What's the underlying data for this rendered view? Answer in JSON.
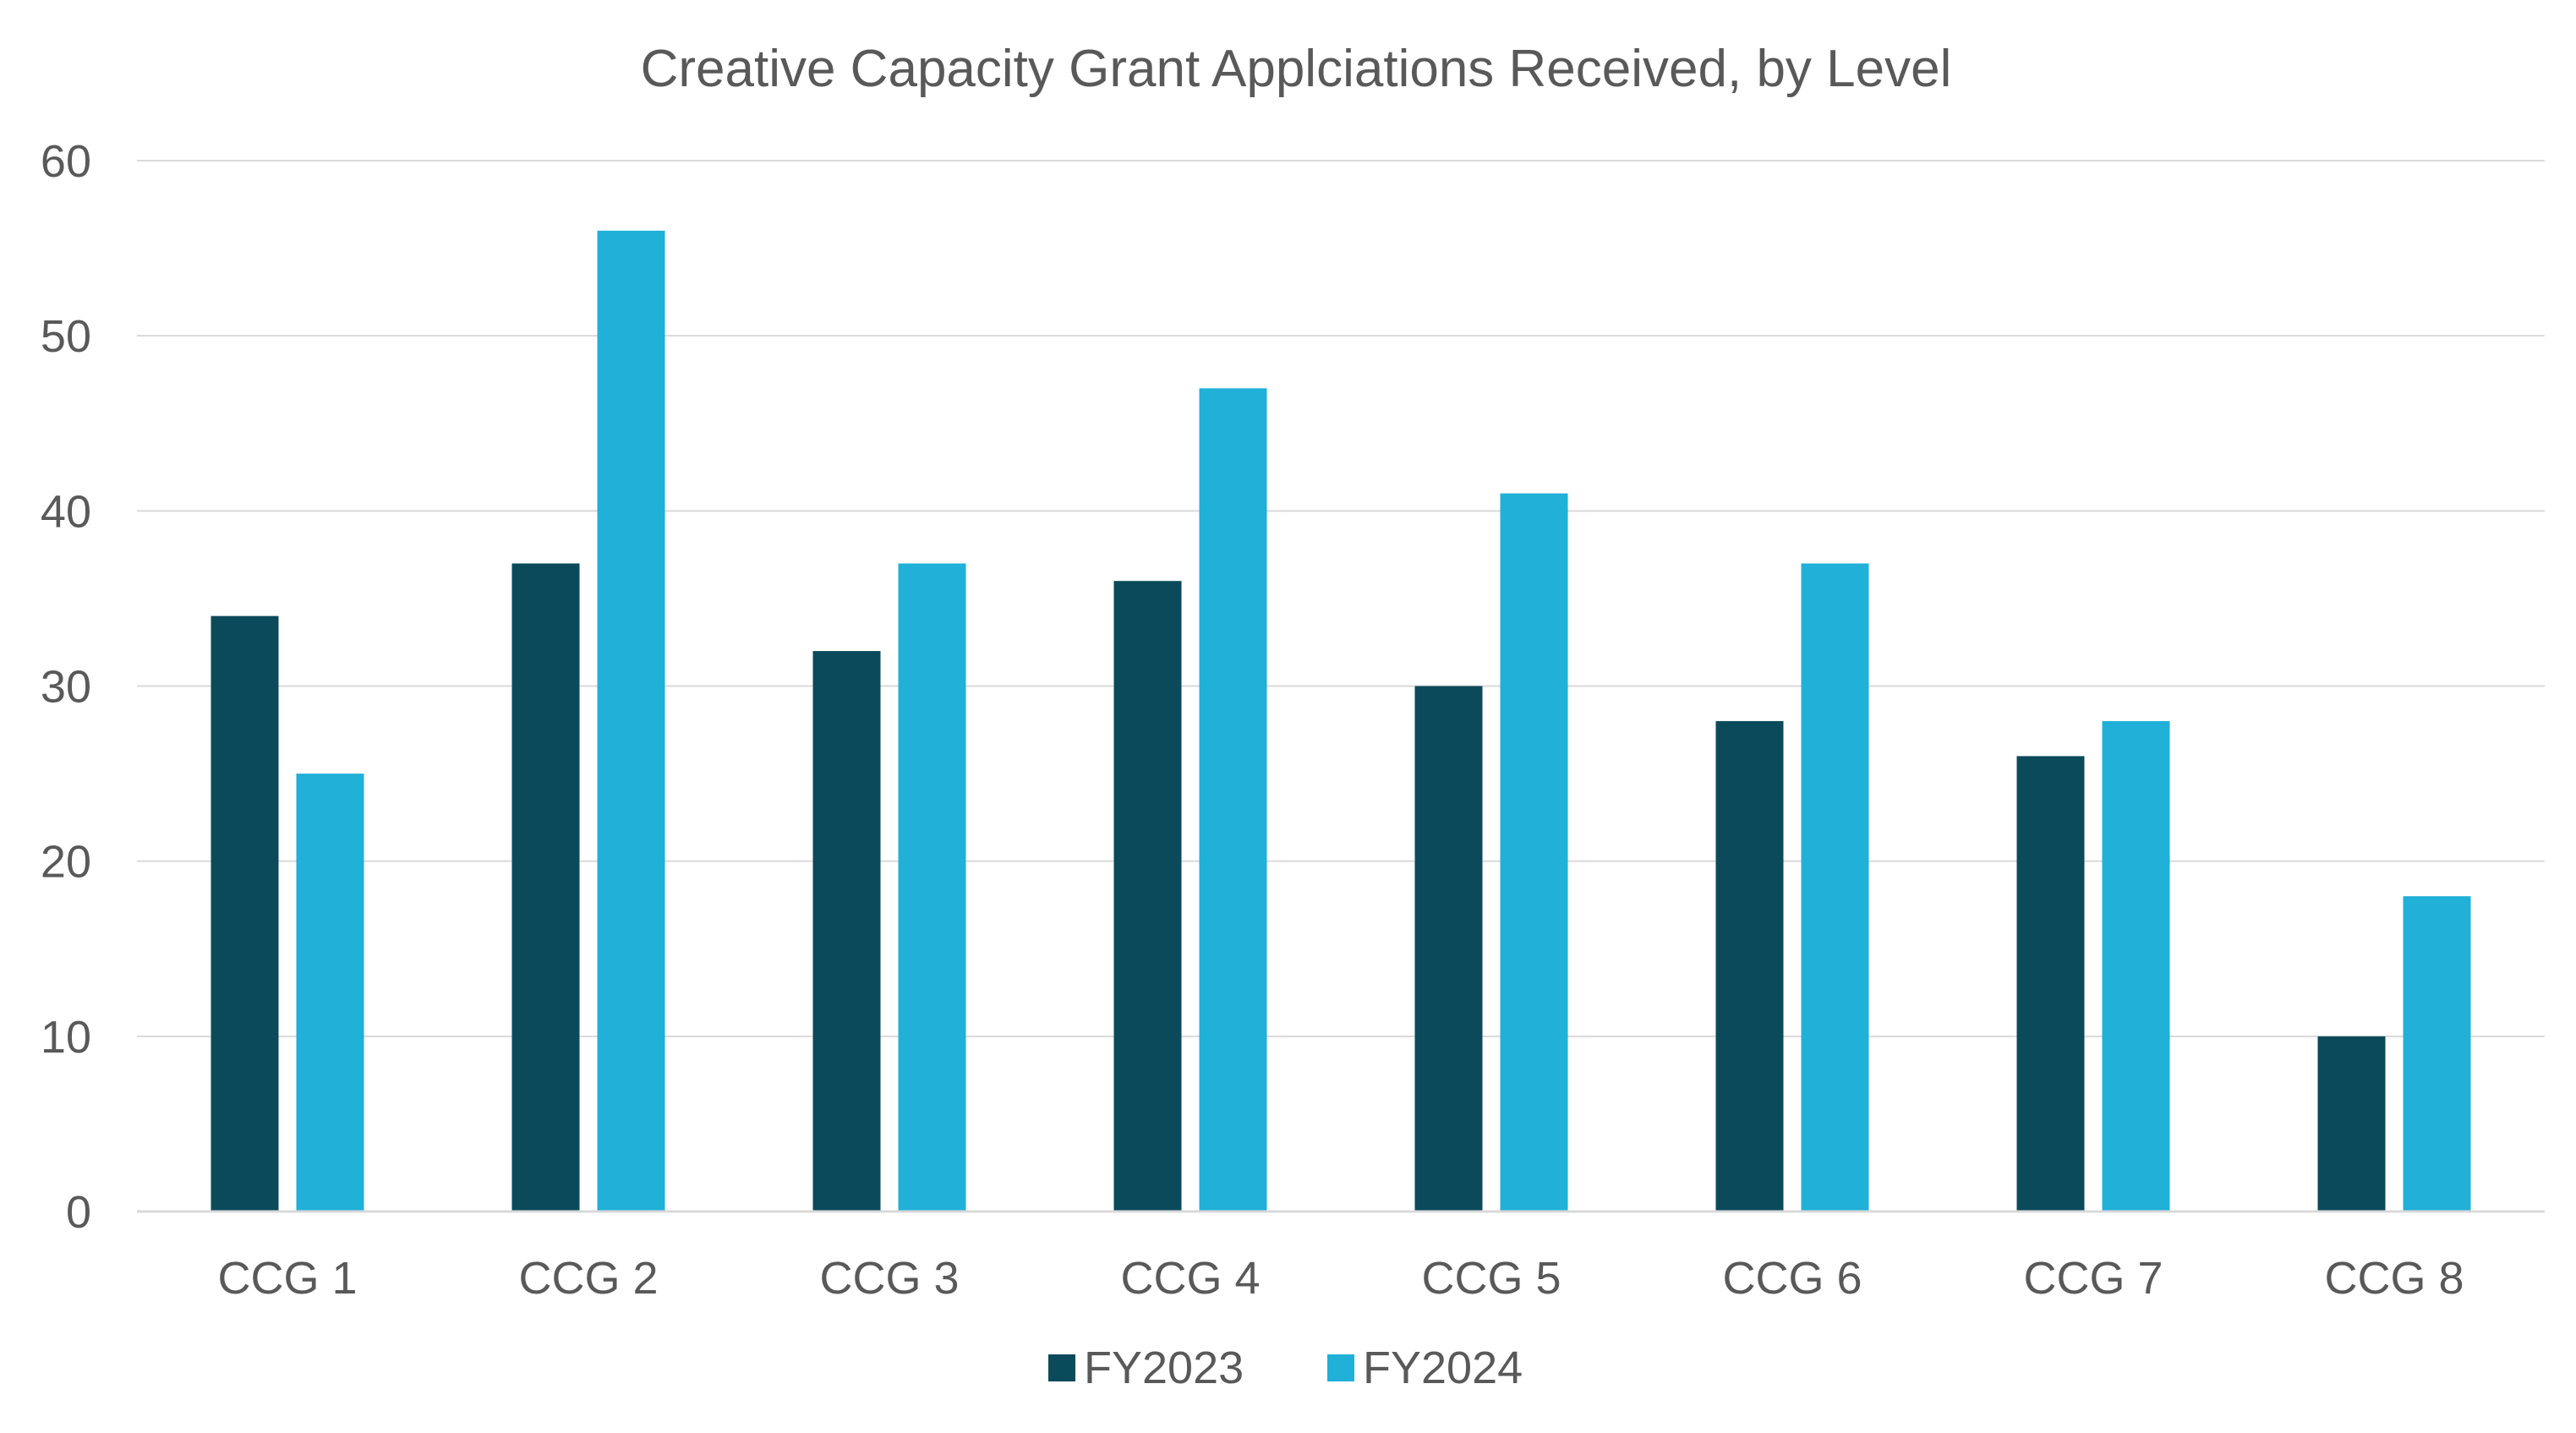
{
  "chart_data": {
    "type": "bar",
    "title": "Creative Capacity Grant Applciations Received, by Level",
    "xlabel": "",
    "ylabel": "",
    "categories": [
      "CCG 1",
      "CCG 2",
      "CCG 3",
      "CCG 4",
      "CCG 5",
      "CCG 6",
      "CCG 7",
      "CCG 8"
    ],
    "series": [
      {
        "name": "FY2023",
        "color": "#0b4a5b",
        "values": [
          34,
          37,
          32,
          36,
          30,
          28,
          26,
          10
        ]
      },
      {
        "name": "FY2024",
        "color": "#20b0d8",
        "values": [
          25,
          56,
          37,
          47,
          41,
          37,
          28,
          18
        ]
      }
    ],
    "ylim": [
      0,
      60
    ],
    "yticks": [
      0,
      10,
      20,
      30,
      40,
      50,
      60
    ],
    "grid": true,
    "legend_position": "bottom"
  }
}
